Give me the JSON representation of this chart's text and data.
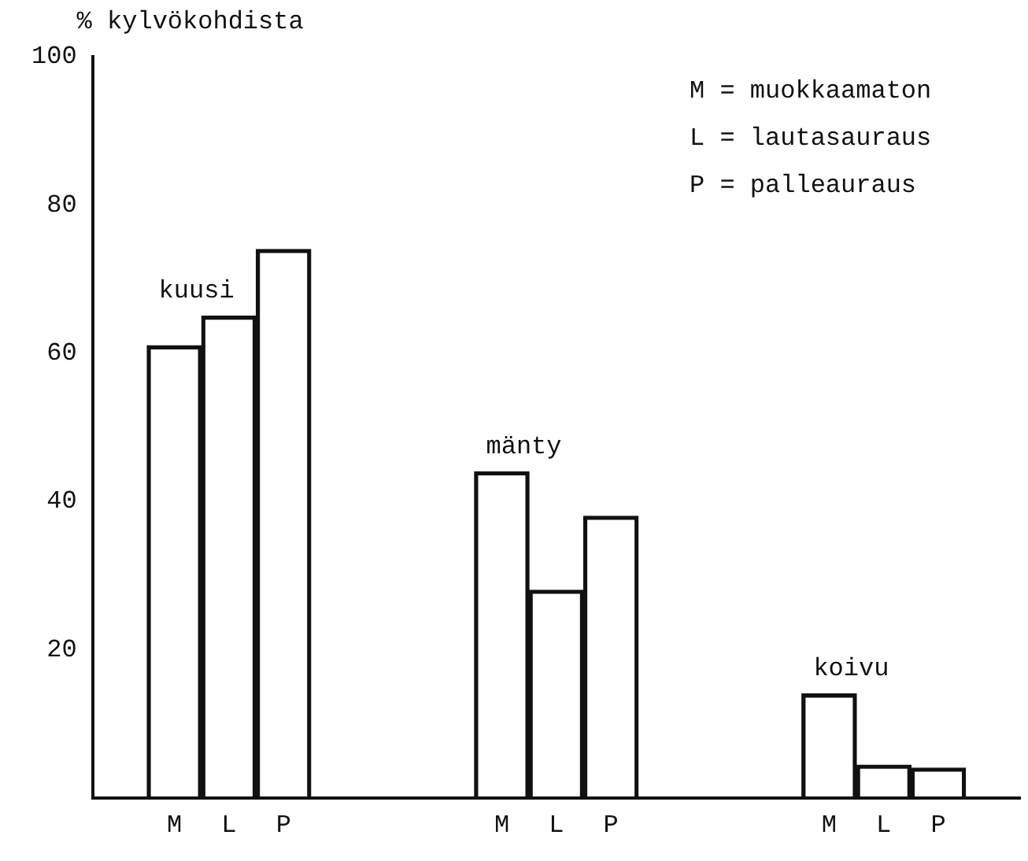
{
  "chart_data": {
    "type": "bar",
    "ylabel": "% kylvökohdista",
    "categories": [
      null,
      "M",
      "L",
      "P",
      null,
      null,
      null,
      "M",
      "L",
      "P",
      null,
      null,
      null,
      "M",
      "L",
      "P",
      null
    ],
    "values": [
      null,
      61,
      65,
      74,
      null,
      null,
      null,
      44,
      28,
      38,
      null,
      null,
      null,
      14,
      4.4,
      4,
      null
    ],
    "color": "#111111",
    "ylim": [
      0,
      100
    ],
    "yticks": [
      20,
      40,
      60,
      80,
      100
    ],
    "grid": false,
    "legend": false,
    "annotations": [
      "kuusi",
      "mänty",
      "koivu",
      "M = muokkaamaton",
      "L = lautasauraus",
      "P = palleauraus"
    ]
  }
}
